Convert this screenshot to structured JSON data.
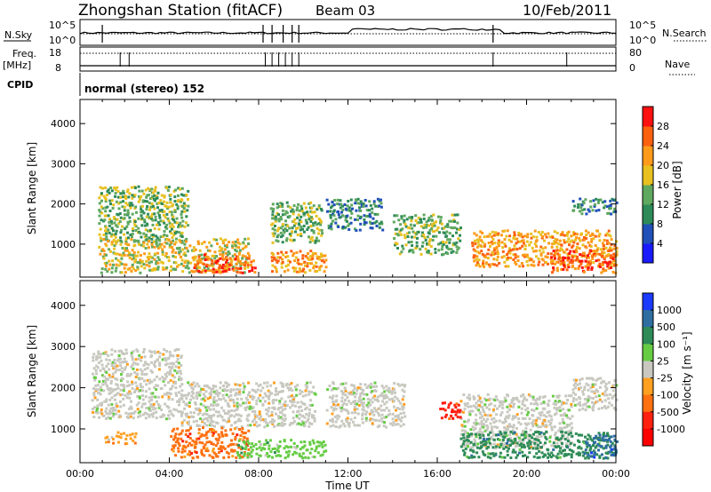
{
  "header": {
    "station": "Zhongshan Station (fitACF)",
    "beam": "Beam 03",
    "date": "10/Feb/2011"
  },
  "summary": {
    "nsky_label": "N.Sky",
    "nsky_ticks": [
      "10^5",
      "10^0"
    ],
    "nsearch_label": "N.Search",
    "nsearch_ticks": [
      "10^5",
      "10^0"
    ],
    "freq_label_top": "Freq.",
    "freq_label_unit": "[MHz]",
    "freq_ticks": [
      "18",
      "8"
    ],
    "nave_label": "Nave",
    "nave_ticks": [
      "80",
      "0"
    ],
    "cpid_label": "CPID",
    "cpid_text": "normal (stereo) 152"
  },
  "chart_data": [
    {
      "type": "heatmap",
      "id": "power",
      "xlabel": "",
      "ylabel": "Slant Range [km]",
      "x_ticks": [
        "00:00",
        "04:00",
        "08:00",
        "12:00",
        "16:00",
        "20:00",
        "00:00"
      ],
      "y_ticks": [
        1000,
        2000,
        3000,
        4000
      ],
      "ylim": [
        180,
        4600
      ],
      "colorbar_label": "Power [dB]",
      "colorbar_ticks": [
        "4",
        "8",
        "12",
        "16",
        "20",
        "24",
        "28"
      ],
      "colorbar_colors": [
        "#1a1aff",
        "#2050b8",
        "#2e8b57",
        "#5fa85f",
        "#e8c020",
        "#ff9a1a",
        "#ff6010",
        "#ff1010"
      ],
      "echo_regions": [
        {
          "t0": 0.8,
          "t1": 4.8,
          "r0": 1000,
          "r1": 2400,
          "level": 3
        },
        {
          "t0": 0.8,
          "t1": 7.5,
          "r0": 250,
          "r1": 1100,
          "level": 4
        },
        {
          "t0": 5.0,
          "t1": 7.8,
          "r0": 250,
          "r1": 700,
          "level": 6
        },
        {
          "t0": 8.5,
          "t1": 10.8,
          "r0": 1000,
          "r1": 2000,
          "level": 3
        },
        {
          "t0": 8.5,
          "t1": 11.0,
          "r0": 250,
          "r1": 800,
          "level": 5
        },
        {
          "t0": 11.0,
          "t1": 13.5,
          "r0": 1300,
          "r1": 2100,
          "level": 2
        },
        {
          "t0": 14.0,
          "t1": 17.0,
          "r0": 700,
          "r1": 1700,
          "level": 3
        },
        {
          "t0": 17.5,
          "t1": 24.0,
          "r0": 400,
          "r1": 1300,
          "level": 5
        },
        {
          "t0": 21.0,
          "t1": 24.0,
          "r0": 250,
          "r1": 800,
          "level": 6
        },
        {
          "t0": 22.0,
          "t1": 24.0,
          "r0": 1700,
          "r1": 2100,
          "level": 2
        }
      ]
    },
    {
      "type": "heatmap",
      "id": "velocity",
      "xlabel": "Time UT",
      "ylabel": "Slant Range [km]",
      "x_ticks": [
        "00:00",
        "04:00",
        "08:00",
        "12:00",
        "16:00",
        "20:00",
        "00:00"
      ],
      "y_ticks": [
        1000,
        2000,
        3000,
        4000
      ],
      "ylim": [
        180,
        4600
      ],
      "colorbar_label": "Velocity [m s⁻¹]",
      "colorbar_ticks": [
        "1000",
        "500",
        "100",
        "25",
        "-25",
        "-100",
        "-500",
        "-1000"
      ],
      "colorbar_colors": [
        "#1a3aff",
        "#2e6ea0",
        "#2e8b57",
        "#66cc44",
        "#c8c8c0",
        "#ffa020",
        "#ff7010",
        "#ff2010",
        "#ff0000"
      ],
      "echo_regions": [
        {
          "t0": 0.5,
          "t1": 4.5,
          "r0": 1200,
          "r1": 2900,
          "color_index": 4
        },
        {
          "t0": 4.5,
          "t1": 10.5,
          "r0": 1000,
          "r1": 2100,
          "color_index": 4
        },
        {
          "t0": 11.0,
          "t1": 14.5,
          "r0": 1000,
          "r1": 2100,
          "color_index": 4
        },
        {
          "t0": 17.0,
          "t1": 22.0,
          "r0": 500,
          "r1": 1800,
          "color_index": 4
        },
        {
          "t0": 22.0,
          "t1": 24.0,
          "r0": 1400,
          "r1": 2200,
          "color_index": 4
        },
        {
          "t0": 1.0,
          "t1": 2.5,
          "r0": 600,
          "r1": 900,
          "color_index": 5
        },
        {
          "t0": 4.0,
          "t1": 7.5,
          "r0": 250,
          "r1": 1000,
          "color_index": 6
        },
        {
          "t0": 7.0,
          "t1": 11.0,
          "r0": 250,
          "r1": 700,
          "color_index": 3
        },
        {
          "t0": 16.0,
          "t1": 17.0,
          "r0": 1200,
          "r1": 1600,
          "color_index": 7
        },
        {
          "t0": 17.0,
          "t1": 24.0,
          "r0": 250,
          "r1": 900,
          "color_index": 2
        },
        {
          "t0": 22.5,
          "t1": 24.0,
          "r0": 250,
          "r1": 800,
          "color_index": 1
        }
      ]
    }
  ]
}
